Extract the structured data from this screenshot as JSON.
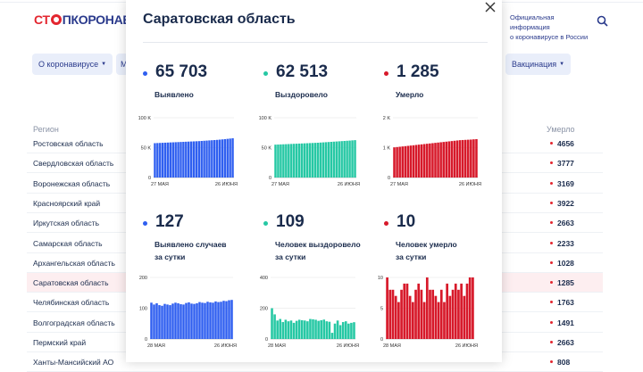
{
  "header": {
    "logo_part1": "СТ",
    "logo_part2": "ПКОРОНАВИ",
    "official_line1": "Официальная информация",
    "official_line2": "о коронавирусе в России"
  },
  "nav": {
    "about": "О коронавирусе",
    "m": "М",
    "vaccination": "Вакцинация"
  },
  "table": {
    "region_header": "Регион",
    "deaths_header": "Умерло",
    "rows": [
      {
        "name": "Ростовская область",
        "deaths": "4656"
      },
      {
        "name": "Свердловская область",
        "deaths": "3777"
      },
      {
        "name": "Воронежская область",
        "deaths": "3169"
      },
      {
        "name": "Красноярский край",
        "deaths": "3922"
      },
      {
        "name": "Иркутская область",
        "deaths": "2663"
      },
      {
        "name": "Самарская область",
        "deaths": "2233"
      },
      {
        "name": "Архангельская область",
        "deaths": "1028"
      },
      {
        "name": "Саратовская область",
        "deaths": "1285"
      },
      {
        "name": "Челябинская область",
        "deaths": "1763"
      },
      {
        "name": "Волгоградская область",
        "deaths": "1491"
      },
      {
        "name": "Пермский край",
        "deaths": "2663"
      },
      {
        "name": "Ханты-Мансийский АО",
        "deaths": "808"
      }
    ]
  },
  "modal": {
    "title": "Саратовская область",
    "stats": [
      {
        "value": "65 703",
        "label1": "Выявлено",
        "label2": "",
        "color": "#2f5ff0"
      },
      {
        "value": "62 513",
        "label1": "Выздоровело",
        "label2": "",
        "color": "#26c8a4"
      },
      {
        "value": "1 285",
        "label1": "Умерло",
        "label2": "",
        "color": "#d7192a"
      },
      {
        "value": "127",
        "label1": "Выявлено случаев",
        "label2": "за сутки",
        "color": "#2f5ff0"
      },
      {
        "value": "109",
        "label1": "Человек выздоровело",
        "label2": "за сутки",
        "color": "#26c8a4"
      },
      {
        "value": "10",
        "label1": "Человек умерло",
        "label2": "за сутки",
        "color": "#d7192a"
      }
    ]
  },
  "chart_data": [
    {
      "type": "bar",
      "color": "#2f5ff0",
      "yticks": [
        "100 K",
        "50 K",
        "0"
      ],
      "ylim": [
        0,
        100000
      ],
      "xlabels": [
        "27 МАЯ",
        "26 ИЮНЯ"
      ],
      "values": [
        57500,
        57700,
        57900,
        58100,
        58300,
        58500,
        58700,
        58900,
        59100,
        59300,
        59500,
        59700,
        59900,
        60100,
        60300,
        60500,
        60700,
        60900,
        61200,
        61500,
        61800,
        62100,
        62400,
        62700,
        63000,
        63400,
        63800,
        64200,
        64700,
        65200,
        65703
      ]
    },
    {
      "type": "bar",
      "color": "#26c8a4",
      "yticks": [
        "100 K",
        "50 K",
        "0"
      ],
      "ylim": [
        0,
        100000
      ],
      "xlabels": [
        "27 МАЯ",
        "26 ИЮНЯ"
      ],
      "values": [
        55000,
        55200,
        55400,
        55600,
        55800,
        56000,
        56200,
        56400,
        56600,
        56800,
        57000,
        57200,
        57400,
        57600,
        57800,
        58000,
        58200,
        58500,
        58800,
        59100,
        59400,
        59700,
        60000,
        60300,
        60600,
        60900,
        61200,
        61500,
        61800,
        62200,
        62513
      ]
    },
    {
      "type": "bar",
      "color": "#d7192a",
      "yticks": [
        "2 K",
        "1 K",
        "0"
      ],
      "ylim": [
        0,
        2000
      ],
      "xlabels": [
        "27 МАЯ",
        "26 ИЮНЯ"
      ],
      "values": [
        1010,
        1020,
        1030,
        1040,
        1050,
        1060,
        1070,
        1080,
        1090,
        1100,
        1110,
        1120,
        1130,
        1140,
        1150,
        1160,
        1170,
        1180,
        1190,
        1200,
        1210,
        1220,
        1230,
        1240,
        1250,
        1255,
        1260,
        1265,
        1270,
        1278,
        1285
      ]
    },
    {
      "type": "bar",
      "color": "#2f5ff0",
      "yticks": [
        "200",
        "100",
        "0"
      ],
      "ylim": [
        0,
        200
      ],
      "xlabels": [
        "28 МАЯ",
        "26 ИЮНЯ"
      ],
      "values": [
        118,
        112,
        116,
        110,
        108,
        114,
        112,
        110,
        115,
        118,
        116,
        113,
        112,
        117,
        119,
        115,
        114,
        116,
        120,
        118,
        117,
        121,
        119,
        118,
        122,
        120,
        121,
        124,
        123,
        126,
        127
      ]
    },
    {
      "type": "bar",
      "color": "#26c8a4",
      "yticks": [
        "400",
        "200",
        "0"
      ],
      "ylim": [
        0,
        400
      ],
      "xlabels": [
        "28 МАЯ",
        "26 ИЮНЯ"
      ],
      "values": [
        200,
        160,
        120,
        130,
        110,
        125,
        115,
        120,
        105,
        118,
        125,
        122,
        120,
        115,
        130,
        128,
        125,
        118,
        122,
        126,
        115,
        112,
        40,
        100,
        120,
        90,
        110,
        115,
        100,
        105,
        109
      ]
    },
    {
      "type": "bar",
      "color": "#d7192a",
      "yticks": [
        "10",
        "5",
        "0"
      ],
      "ylim": [
        0,
        10
      ],
      "xlabels": [
        "28 МАЯ",
        "26 ИЮНЯ"
      ],
      "values": [
        10,
        8,
        8,
        7,
        6,
        8,
        9,
        9,
        7,
        6,
        8,
        9,
        8,
        6,
        10,
        8,
        8,
        7,
        6,
        8,
        6,
        9,
        7,
        8,
        9,
        8,
        9,
        7,
        9,
        10,
        10
      ]
    }
  ]
}
